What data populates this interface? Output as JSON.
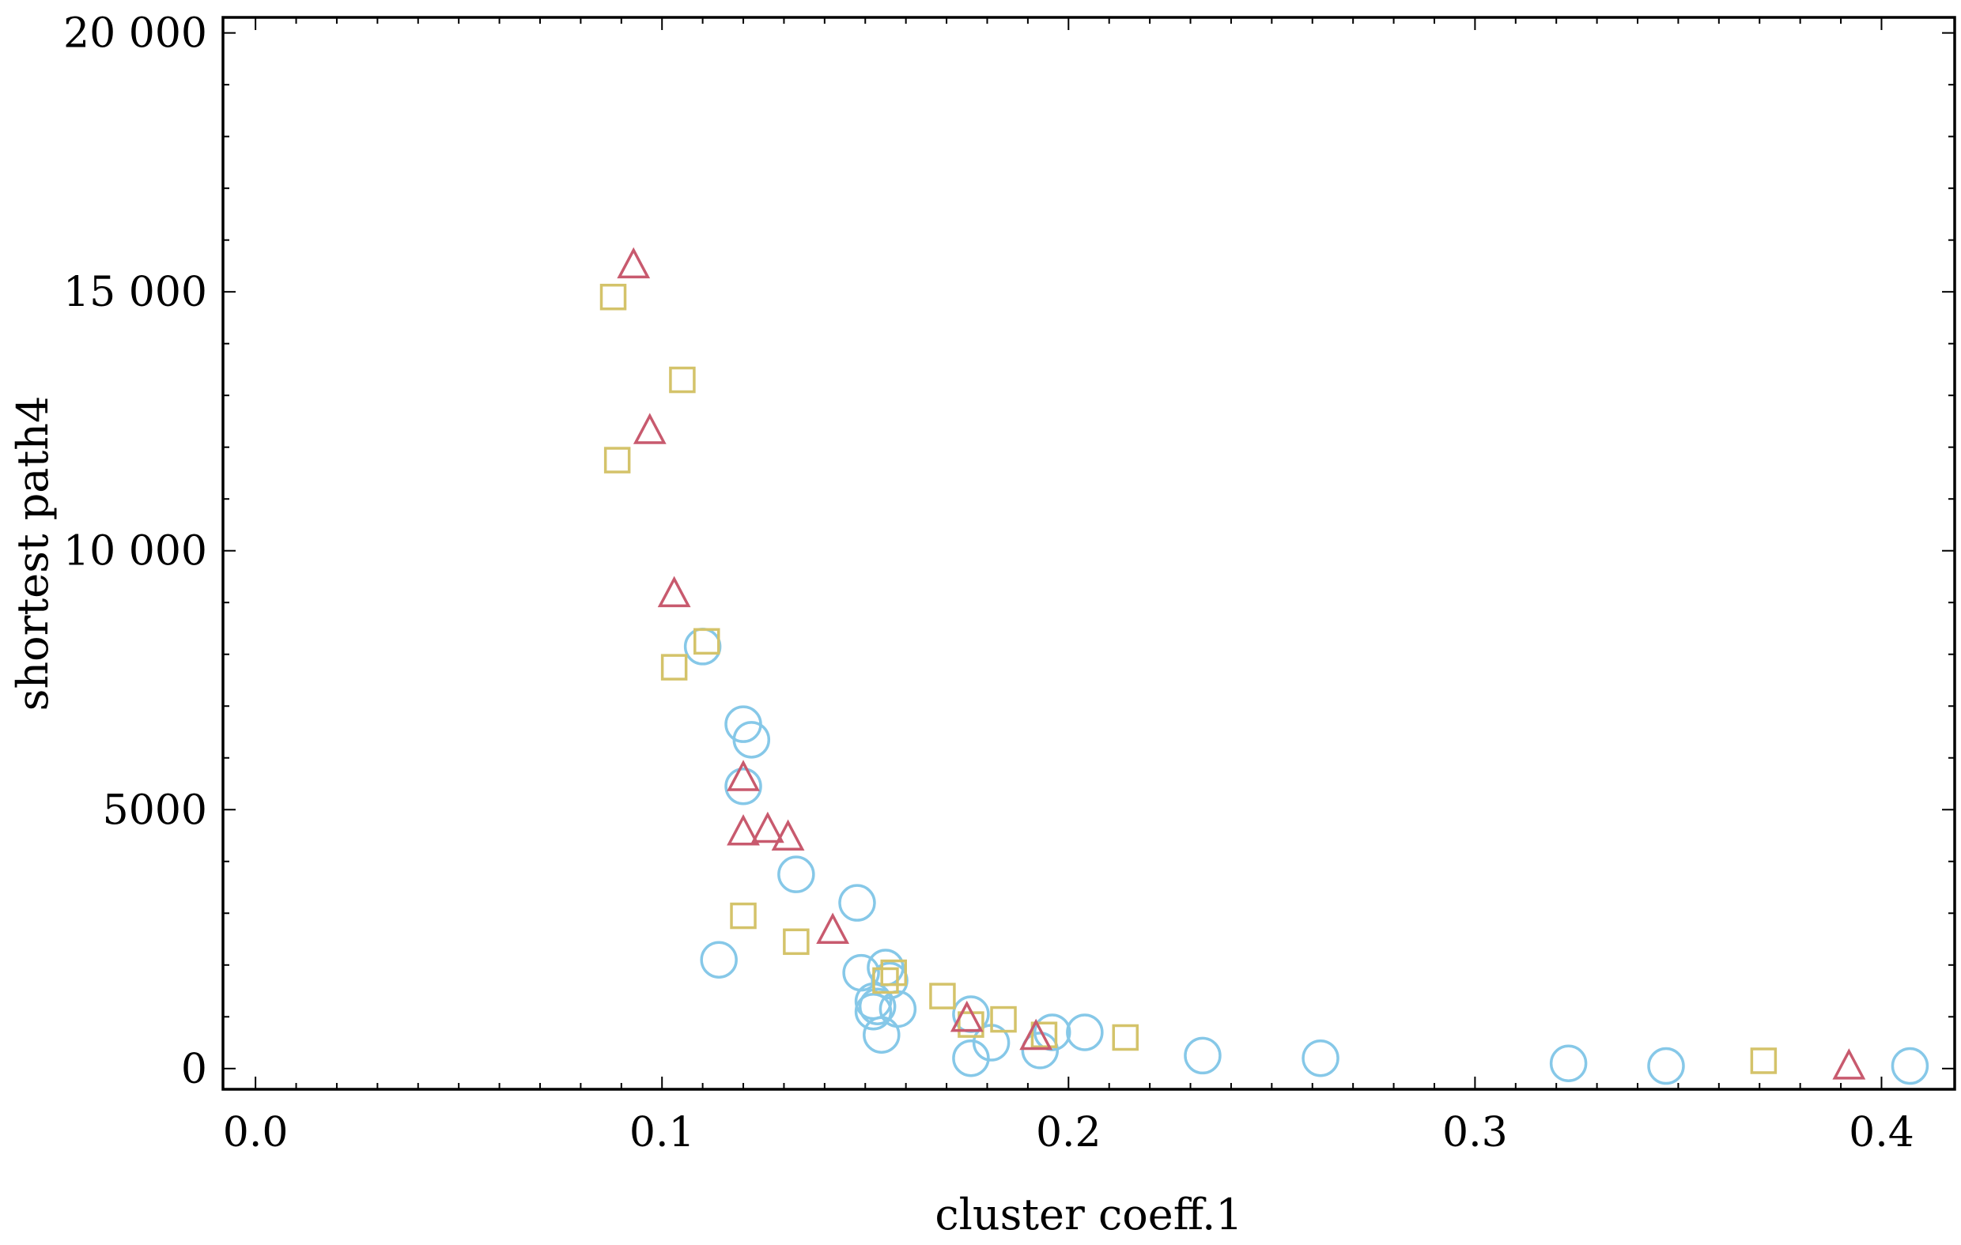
{
  "chart_data": {
    "type": "scatter",
    "xlabel": "cluster coeff.1",
    "ylabel": "shortest path4",
    "xlim": [
      -0.008,
      0.418
    ],
    "ylim": [
      -400,
      20300
    ],
    "x_ticks": [
      0.0,
      0.1,
      0.2,
      0.3,
      0.4
    ],
    "x_tick_labels": [
      "0.0",
      "0.1",
      "0.2",
      "0.3",
      "0.4"
    ],
    "y_ticks": [
      0,
      5000,
      10000,
      15000,
      20000
    ],
    "y_tick_labels": [
      "0",
      "5000",
      "10 000",
      "15 000",
      "20 000"
    ],
    "grid": false,
    "series": [
      {
        "marker": "triangle",
        "color": "#c85a6e",
        "x": [
          0.093,
          0.097,
          0.103,
          0.12,
          0.12,
          0.126,
          0.131,
          0.142,
          0.175,
          0.192,
          0.392
        ],
        "y": [
          15500,
          12300,
          9150,
          5600,
          4550,
          4600,
          4450,
          2650,
          950,
          600,
          30
        ]
      },
      {
        "marker": "square",
        "color": "#d4c36a",
        "x": [
          0.088,
          0.089,
          0.105,
          0.111,
          0.103,
          0.12,
          0.133,
          0.155,
          0.157,
          0.169,
          0.176,
          0.184,
          0.194,
          0.214,
          0.371
        ],
        "y": [
          14900,
          11750,
          13300,
          8250,
          7750,
          2950,
          2450,
          1700,
          1850,
          1400,
          850,
          950,
          650,
          600,
          150
        ]
      },
      {
        "marker": "circle",
        "color": "#86c8e8",
        "x": [
          0.11,
          0.114,
          0.12,
          0.122,
          0.12,
          0.133,
          0.148,
          0.149,
          0.152,
          0.153,
          0.152,
          0.155,
          0.156,
          0.158,
          0.154,
          0.176,
          0.176,
          0.181,
          0.193,
          0.196,
          0.204,
          0.233,
          0.262,
          0.323,
          0.347,
          0.407
        ],
        "y": [
          8150,
          2100,
          6650,
          6350,
          5450,
          3750,
          3200,
          1850,
          1300,
          1200,
          1100,
          1950,
          1700,
          1150,
          650,
          1050,
          200,
          500,
          350,
          700,
          700,
          250,
          200,
          100,
          50,
          50
        ]
      }
    ]
  }
}
